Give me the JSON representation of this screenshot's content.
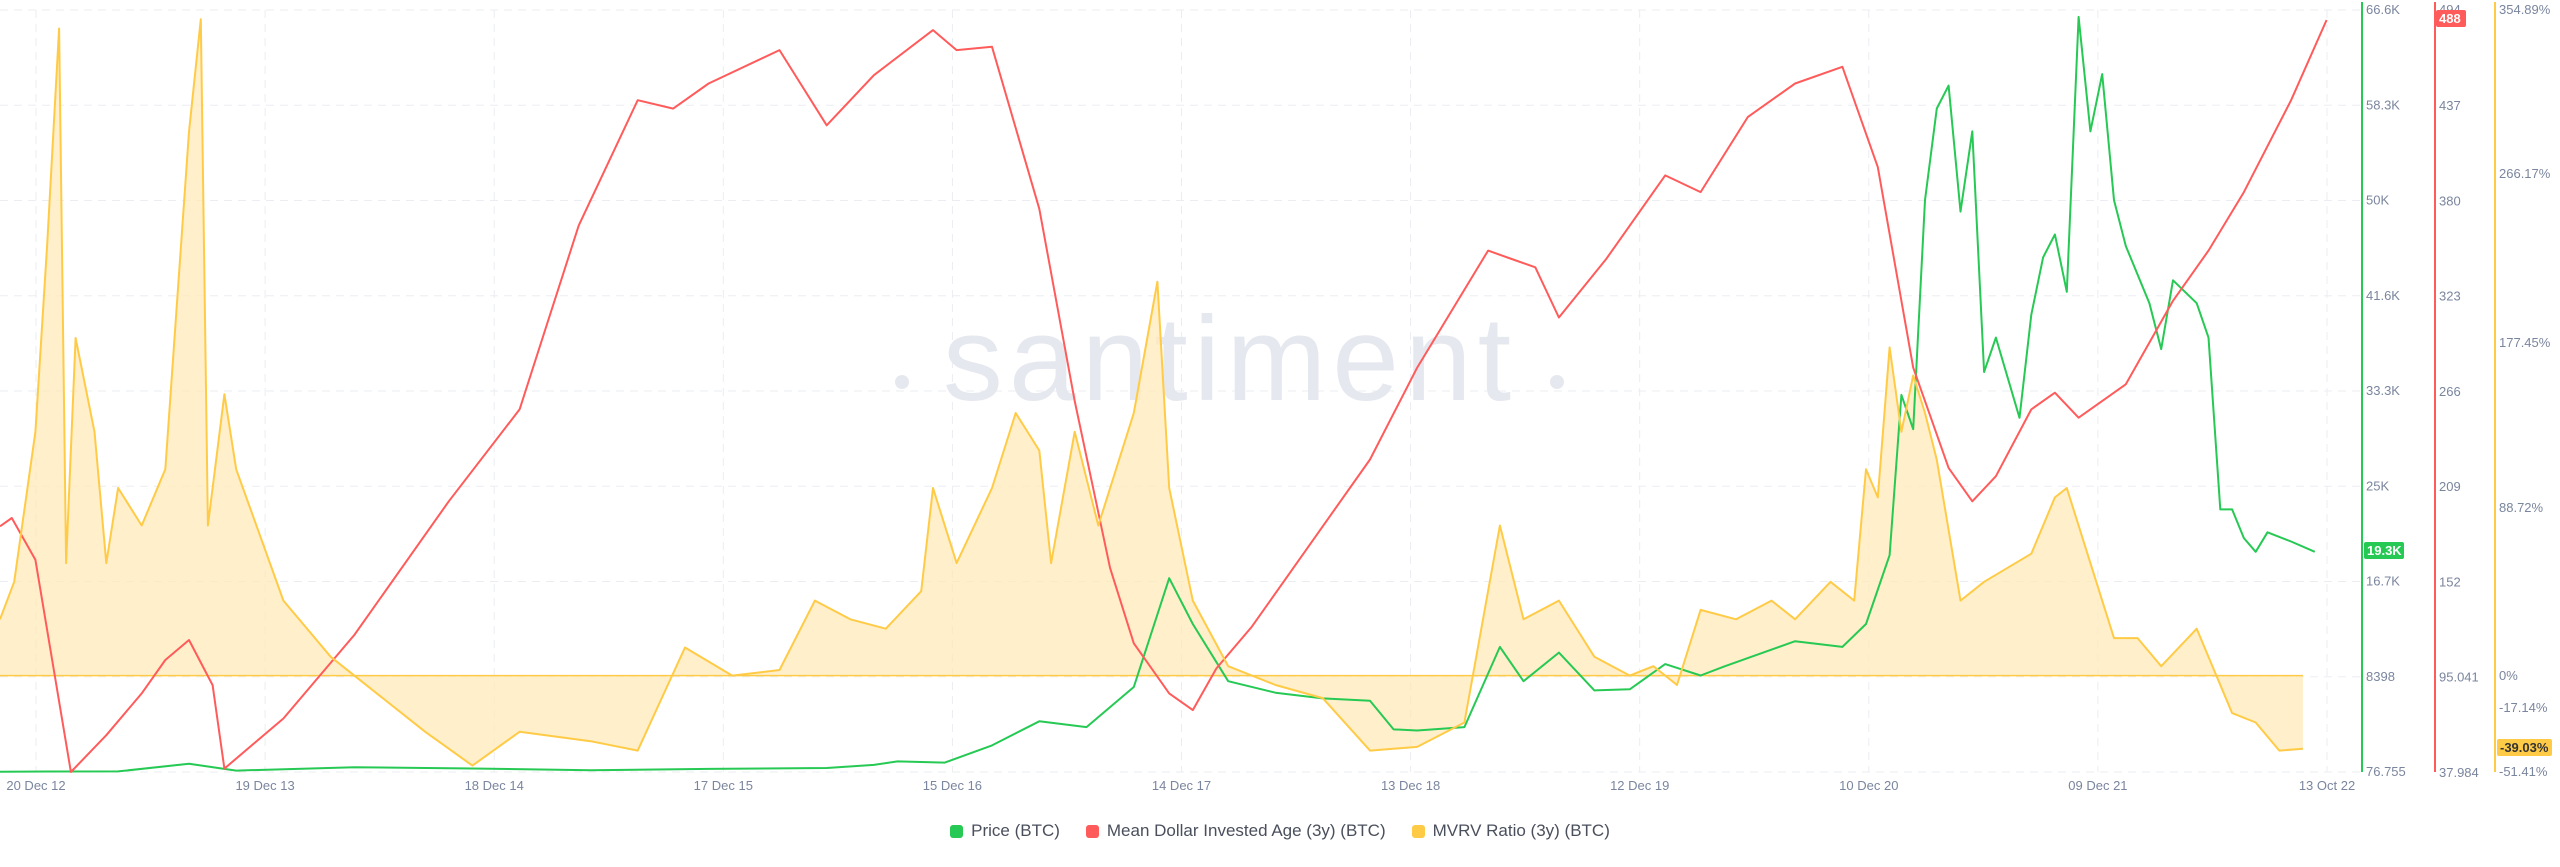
{
  "watermark": "santiment",
  "colors": {
    "price": "#26c953",
    "mdia": "#ff5b5b",
    "mvrv": "#ffcb47",
    "mvrv_fill": "#ffe9b8",
    "grid": "#ebedf2",
    "axis_text": "#7a859e"
  },
  "legend": [
    {
      "label": "Price (BTC)",
      "color": "#26c953"
    },
    {
      "label": "Mean Dollar Invested Age (3y) (BTC)",
      "color": "#ff5b5b"
    },
    {
      "label": "MVRV Ratio (3y) (BTC)",
      "color": "#ffcb47"
    }
  ],
  "chart_data": {
    "type": "line",
    "x_tick_labels": [
      "20 Dec 12",
      "19 Dec 13",
      "18 Dec 14",
      "17 Dec 15",
      "15 Dec 16",
      "14 Dec 17",
      "13 Dec 18",
      "12 Dec 19",
      "10 Dec 20",
      "09 Dec 21",
      "13 Oct 22"
    ],
    "axes": {
      "price": {
        "ticks": [
          "66.6K",
          "58.3K",
          "50K",
          "41.6K",
          "33.3K",
          "25K",
          "16.7K",
          "8398",
          "76.755"
        ],
        "range": [
          76.755,
          66600
        ],
        "current_label": "19.3K"
      },
      "mdia": {
        "ticks": [
          "437",
          "380",
          "323",
          "266",
          "209",
          "152",
          "95.041",
          "37.984"
        ],
        "range": [
          37.984,
          494
        ],
        "top_label": "494",
        "current_label": "488"
      },
      "mvrv": {
        "ticks": [
          "354.89%",
          "266.17%",
          "177.45%",
          "88.72%",
          "0%",
          "-17.14%",
          "-51.41%"
        ],
        "range": [
          -51.41,
          354.89
        ],
        "current_label": "-39.03%"
      }
    },
    "series": [
      {
        "name": "Price (BTC)",
        "axis": "price",
        "points": [
          [
            0,
            100
          ],
          [
            0.02,
            120
          ],
          [
            0.05,
            130
          ],
          [
            0.08,
            800
          ],
          [
            0.1,
            200
          ],
          [
            0.15,
            500
          ],
          [
            0.2,
            380
          ],
          [
            0.25,
            230
          ],
          [
            0.3,
            350
          ],
          [
            0.35,
            430
          ],
          [
            0.37,
            700
          ],
          [
            0.38,
            1000
          ],
          [
            0.4,
            900
          ],
          [
            0.42,
            2400
          ],
          [
            0.44,
            4500
          ],
          [
            0.46,
            4000
          ],
          [
            0.48,
            7500
          ],
          [
            0.495,
            17000
          ],
          [
            0.505,
            13000
          ],
          [
            0.52,
            8000
          ],
          [
            0.54,
            7000
          ],
          [
            0.56,
            6500
          ],
          [
            0.58,
            6300
          ],
          [
            0.59,
            3800
          ],
          [
            0.6,
            3700
          ],
          [
            0.62,
            4000
          ],
          [
            0.635,
            11000
          ],
          [
            0.645,
            8000
          ],
          [
            0.66,
            10500
          ],
          [
            0.675,
            7200
          ],
          [
            0.69,
            7300
          ],
          [
            0.705,
            9500
          ],
          [
            0.72,
            8500
          ],
          [
            0.73,
            9300
          ],
          [
            0.76,
            11500
          ],
          [
            0.78,
            11000
          ],
          [
            0.79,
            13000
          ],
          [
            0.8,
            19000
          ],
          [
            0.805,
            33000
          ],
          [
            0.81,
            30000
          ],
          [
            0.815,
            50000
          ],
          [
            0.82,
            58000
          ],
          [
            0.825,
            60000
          ],
          [
            0.83,
            49000
          ],
          [
            0.835,
            56000
          ],
          [
            0.84,
            35000
          ],
          [
            0.845,
            38000
          ],
          [
            0.855,
            31000
          ],
          [
            0.86,
            40000
          ],
          [
            0.865,
            45000
          ],
          [
            0.87,
            47000
          ],
          [
            0.875,
            42000
          ],
          [
            0.88,
            66000
          ],
          [
            0.885,
            56000
          ],
          [
            0.89,
            61000
          ],
          [
            0.895,
            50000
          ],
          [
            0.9,
            46000
          ],
          [
            0.91,
            41000
          ],
          [
            0.915,
            37000
          ],
          [
            0.92,
            43000
          ],
          [
            0.93,
            41000
          ],
          [
            0.935,
            38000
          ],
          [
            0.94,
            23000
          ],
          [
            0.945,
            23000
          ],
          [
            0.95,
            20500
          ],
          [
            0.955,
            19300
          ],
          [
            0.96,
            21000
          ],
          [
            0.97,
            20200
          ],
          [
            0.98,
            19300
          ]
        ]
      },
      {
        "name": "Mean Dollar Invested Age (3y) (BTC)",
        "axis": "mdia",
        "points": [
          [
            0,
            185
          ],
          [
            0.005,
            190
          ],
          [
            0.015,
            165
          ],
          [
            0.03,
            38
          ],
          [
            0.045,
            60
          ],
          [
            0.06,
            85
          ],
          [
            0.07,
            105
          ],
          [
            0.08,
            117
          ],
          [
            0.09,
            90
          ],
          [
            0.095,
            40
          ],
          [
            0.12,
            70
          ],
          [
            0.15,
            120
          ],
          [
            0.19,
            200
          ],
          [
            0.22,
            255
          ],
          [
            0.245,
            365
          ],
          [
            0.27,
            440
          ],
          [
            0.285,
            435
          ],
          [
            0.3,
            450
          ],
          [
            0.33,
            470
          ],
          [
            0.35,
            425
          ],
          [
            0.37,
            455
          ],
          [
            0.395,
            482
          ],
          [
            0.405,
            470
          ],
          [
            0.42,
            472
          ],
          [
            0.44,
            375
          ],
          [
            0.455,
            260
          ],
          [
            0.47,
            160
          ],
          [
            0.48,
            115
          ],
          [
            0.495,
            85
          ],
          [
            0.505,
            75
          ],
          [
            0.515,
            100
          ],
          [
            0.53,
            125
          ],
          [
            0.55,
            165
          ],
          [
            0.58,
            225
          ],
          [
            0.6,
            280
          ],
          [
            0.63,
            350
          ],
          [
            0.64,
            345
          ],
          [
            0.65,
            340
          ],
          [
            0.66,
            310
          ],
          [
            0.68,
            345
          ],
          [
            0.705,
            395
          ],
          [
            0.72,
            385
          ],
          [
            0.74,
            430
          ],
          [
            0.76,
            450
          ],
          [
            0.78,
            460
          ],
          [
            0.795,
            400
          ],
          [
            0.81,
            280
          ],
          [
            0.825,
            220
          ],
          [
            0.835,
            200
          ],
          [
            0.845,
            215
          ],
          [
            0.86,
            255
          ],
          [
            0.87,
            265
          ],
          [
            0.88,
            250
          ],
          [
            0.9,
            270
          ],
          [
            0.92,
            320
          ],
          [
            0.935,
            350
          ],
          [
            0.95,
            385
          ],
          [
            0.97,
            440
          ],
          [
            0.985,
            488
          ]
        ]
      },
      {
        "name": "MVRV Ratio (3y) (BTC)",
        "axis": "mvrv",
        "points": [
          [
            0,
            30
          ],
          [
            0.006,
            50
          ],
          [
            0.015,
            130
          ],
          [
            0.02,
            230
          ],
          [
            0.025,
            345
          ],
          [
            0.028,
            60
          ],
          [
            0.032,
            180
          ],
          [
            0.04,
            130
          ],
          [
            0.045,
            60
          ],
          [
            0.05,
            100
          ],
          [
            0.06,
            80
          ],
          [
            0.07,
            110
          ],
          [
            0.08,
            290
          ],
          [
            0.085,
            350
          ],
          [
            0.088,
            80
          ],
          [
            0.095,
            150
          ],
          [
            0.1,
            110
          ],
          [
            0.12,
            40
          ],
          [
            0.14,
            10
          ],
          [
            0.16,
            -10
          ],
          [
            0.18,
            -30
          ],
          [
            0.2,
            -48
          ],
          [
            0.22,
            -30
          ],
          [
            0.25,
            -35
          ],
          [
            0.27,
            -40
          ],
          [
            0.29,
            15
          ],
          [
            0.31,
            0
          ],
          [
            0.33,
            3
          ],
          [
            0.345,
            40
          ],
          [
            0.36,
            30
          ],
          [
            0.375,
            25
          ],
          [
            0.39,
            45
          ],
          [
            0.395,
            100
          ],
          [
            0.405,
            60
          ],
          [
            0.42,
            100
          ],
          [
            0.43,
            140
          ],
          [
            0.44,
            120
          ],
          [
            0.445,
            60
          ],
          [
            0.455,
            130
          ],
          [
            0.465,
            80
          ],
          [
            0.48,
            140
          ],
          [
            0.49,
            210
          ],
          [
            0.495,
            100
          ],
          [
            0.505,
            40
          ],
          [
            0.52,
            5
          ],
          [
            0.54,
            -5
          ],
          [
            0.56,
            -12
          ],
          [
            0.58,
            -40
          ],
          [
            0.6,
            -38
          ],
          [
            0.62,
            -25
          ],
          [
            0.635,
            80
          ],
          [
            0.645,
            30
          ],
          [
            0.66,
            40
          ],
          [
            0.675,
            10
          ],
          [
            0.69,
            0
          ],
          [
            0.7,
            5
          ],
          [
            0.71,
            -5
          ],
          [
            0.72,
            35
          ],
          [
            0.735,
            30
          ],
          [
            0.75,
            40
          ],
          [
            0.76,
            30
          ],
          [
            0.775,
            50
          ],
          [
            0.785,
            40
          ],
          [
            0.79,
            110
          ],
          [
            0.795,
            95
          ],
          [
            0.8,
            175
          ],
          [
            0.805,
            130
          ],
          [
            0.81,
            160
          ],
          [
            0.815,
            140
          ],
          [
            0.82,
            115
          ],
          [
            0.83,
            40
          ],
          [
            0.84,
            50
          ],
          [
            0.86,
            65
          ],
          [
            0.87,
            95
          ],
          [
            0.875,
            100
          ],
          [
            0.885,
            60
          ],
          [
            0.895,
            20
          ],
          [
            0.905,
            20
          ],
          [
            0.915,
            5
          ],
          [
            0.93,
            25
          ],
          [
            0.945,
            -20
          ],
          [
            0.955,
            -25
          ],
          [
            0.965,
            -40
          ],
          [
            0.975,
            -39
          ]
        ]
      }
    ],
    "mvrv_zero_line": 0,
    "grid": true,
    "legend_position": "bottom"
  }
}
